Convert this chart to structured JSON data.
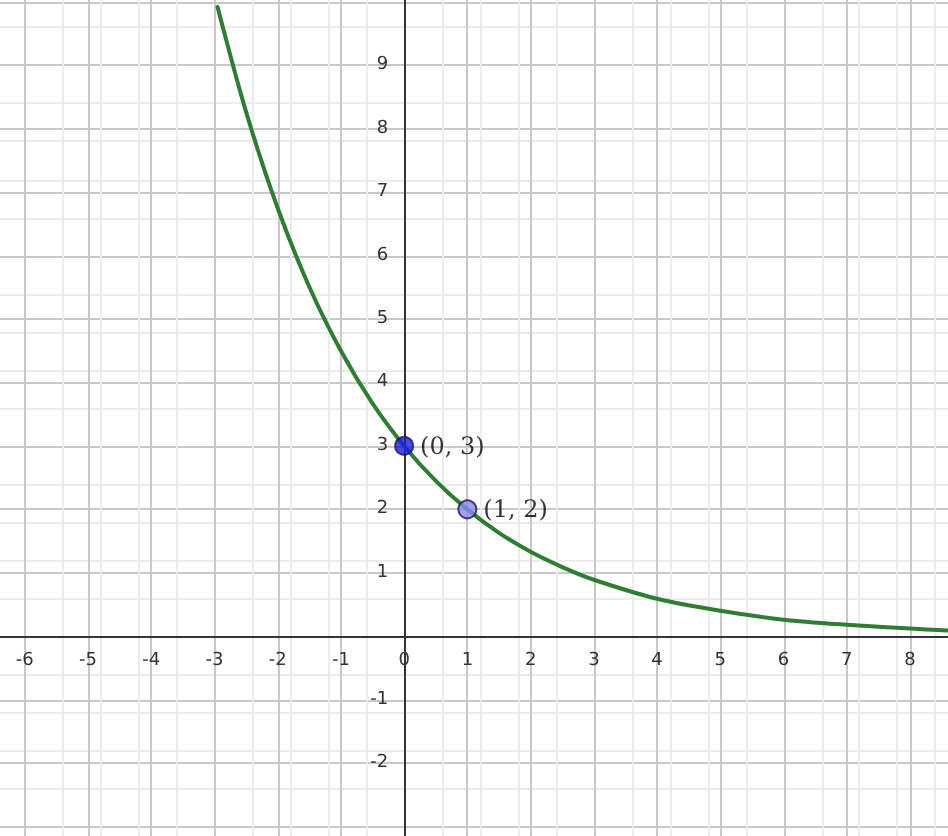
{
  "chart_data": {
    "type": "line",
    "x": [
      -2.95,
      -2.5,
      -2,
      -1.5,
      -1,
      -0.5,
      0,
      0.5,
      1,
      1.5,
      2,
      2.5,
      3,
      4,
      5,
      6,
      7,
      8,
      8.6
    ],
    "series": [
      {
        "color": "#2e7d32",
        "values": [
          9.92,
          8.27,
          6.75,
          5.51,
          4.5,
          3.67,
          3,
          2.45,
          2,
          1.63,
          1.33,
          1.09,
          0.89,
          0.59,
          0.4,
          0.26,
          0.18,
          0.12,
          0.09
        ],
        "marker": "none"
      },
      {
        "type": "scatter",
        "color": "#1a1ae0",
        "x": [
          0
        ],
        "values": [
          3
        ],
        "marker": "circle"
      },
      {
        "type": "scatter",
        "color": "#8a8ae8",
        "x": [
          1
        ],
        "values": [
          2
        ],
        "marker": "circle"
      }
    ],
    "annotations": [
      {
        "text": "(0, 3)",
        "x": 0,
        "y": 3
      },
      {
        "text": "(1, 2)",
        "x": 1,
        "y": 2
      }
    ],
    "xlim": [
      -6.39,
      8.6
    ],
    "ylim": [
      -3.15,
      10.03
    ],
    "xticks": [
      -6,
      -5,
      -4,
      -3,
      -2,
      -1,
      0,
      1,
      2,
      3,
      4,
      5,
      6,
      7,
      8
    ],
    "yticks": [
      -2,
      -1,
      1,
      2,
      3,
      4,
      5,
      6,
      7,
      8,
      9
    ],
    "grid": true,
    "line_style": "solid"
  }
}
